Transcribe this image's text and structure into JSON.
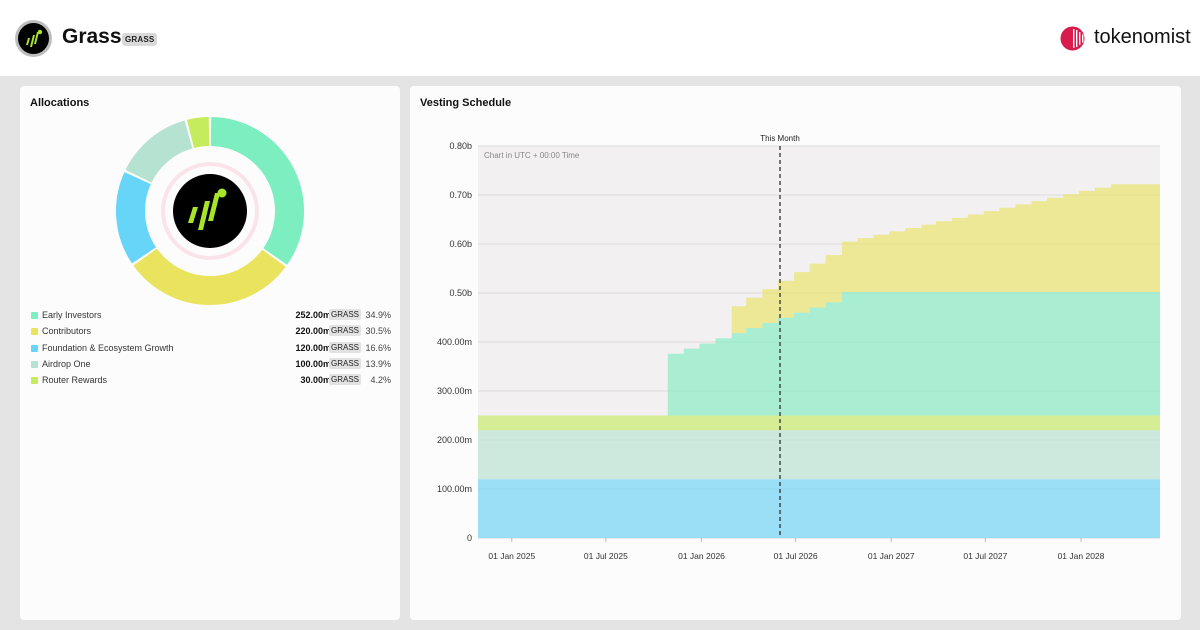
{
  "header": {
    "token_name": "Grass",
    "token_ticker": "GRASS",
    "brand_name": "tokenomist",
    "brand_color": "#d81b4c",
    "token_logo_icon": "grass-logo-icon"
  },
  "allocations": {
    "title": "Allocations",
    "items": [
      {
        "label": "Early Investors",
        "amount": "252.00m",
        "ticker": "GRASS",
        "pct": "34.9%",
        "value": 252,
        "color": "#7ceec0"
      },
      {
        "label": "Contributors",
        "amount": "220.00m",
        "ticker": "GRASS",
        "pct": "30.5%",
        "value": 220,
        "color": "#e9e35e"
      },
      {
        "label": "Foundation & Ecosystem Growth",
        "amount": "120.00m",
        "ticker": "GRASS",
        "pct": "16.6%",
        "value": 120,
        "color": "#66d5f8"
      },
      {
        "label": "Airdrop One",
        "amount": "100.00m",
        "ticker": "GRASS",
        "pct": "13.9%",
        "value": 100,
        "color": "#b6e3d1"
      },
      {
        "label": "Router Rewards",
        "amount": "30.00m",
        "ticker": "GRASS",
        "pct": "4.2%",
        "value": 30,
        "color": "#c4ec5c"
      }
    ]
  },
  "vesting": {
    "title": "Vesting Schedule",
    "marker_label": "This Month",
    "note": "Chart in UTC + 00:00 Time"
  },
  "chart_data": {
    "type": "area",
    "title": "Vesting Schedule",
    "subtitle": "Chart in UTC + 00:00 Time",
    "stacking": "stacked",
    "step": true,
    "grid": true,
    "x_range": [
      "2024-10-28",
      "2028-06-01"
    ],
    "y_range": [
      0,
      800
    ],
    "y_unit": "millions GRASS",
    "y_ticks": [
      "0",
      "100.00m",
      "200.00m",
      "300.00m",
      "400.00m",
      "0.50b",
      "0.60b",
      "0.70b",
      "0.80b"
    ],
    "y_tick_values": [
      0,
      100,
      200,
      300,
      400,
      500,
      600,
      700,
      800
    ],
    "x_ticks": [
      "01 Jan 2025",
      "01 Jul 2025",
      "01 Jan 2026",
      "01 Jul 2026",
      "01 Jan 2027",
      "01 Jul 2027",
      "01 Jan 2028"
    ],
    "x_tick_dates": [
      "2025-01-01",
      "2025-07-01",
      "2026-01-01",
      "2026-07-01",
      "2027-01-01",
      "2027-07-01",
      "2028-01-01"
    ],
    "marker": {
      "label": "This Month",
      "date": "2026-06-01"
    },
    "series": [
      {
        "name": "Foundation & Ecosystem Growth",
        "color": "#66d5f8",
        "dates": [
          "2024-10-28"
        ],
        "values": [
          120
        ]
      },
      {
        "name": "Airdrop One",
        "color": "#b6e3d1",
        "dates": [
          "2024-10-28"
        ],
        "values": [
          100
        ]
      },
      {
        "name": "Router Rewards",
        "color": "#c4ec5c",
        "dates": [
          "2024-10-28"
        ],
        "values": [
          30
        ]
      },
      {
        "name": "Early Investors",
        "color": "#7ceec0",
        "dates": [
          "2024-10-28",
          "2025-10-28",
          "2025-11-28",
          "2025-12-28",
          "2026-01-28",
          "2026-02-28",
          "2026-03-28",
          "2026-04-28",
          "2026-05-28",
          "2026-06-28",
          "2026-07-28",
          "2026-08-28",
          "2026-09-28"
        ],
        "values": [
          0,
          126,
          136.5,
          147,
          157.5,
          168,
          178.5,
          189,
          199.5,
          210,
          220.5,
          231,
          252
        ]
      },
      {
        "name": "Contributors",
        "color": "#e9e35e",
        "dates": [
          "2024-10-28",
          "2026-02-28",
          "2026-03-28",
          "2026-04-28",
          "2026-05-28",
          "2026-06-28",
          "2026-07-28",
          "2026-08-28",
          "2026-09-28",
          "2026-10-28",
          "2026-11-28",
          "2026-12-28",
          "2027-01-28",
          "2027-02-28",
          "2027-03-28",
          "2027-04-28",
          "2027-05-28",
          "2027-06-28",
          "2027-07-28",
          "2027-08-28",
          "2027-09-28",
          "2027-10-28",
          "2027-11-28",
          "2027-12-28",
          "2028-01-28",
          "2028-02-28"
        ],
        "values": [
          0,
          55,
          61.9,
          68.8,
          75.6,
          82.5,
          89.4,
          96.3,
          103.1,
          110,
          116.9,
          123.8,
          130.6,
          137.5,
          144.4,
          151.3,
          158.1,
          165,
          171.9,
          178.8,
          185.6,
          192.5,
          199.4,
          206.3,
          213.1,
          220
        ]
      }
    ]
  }
}
